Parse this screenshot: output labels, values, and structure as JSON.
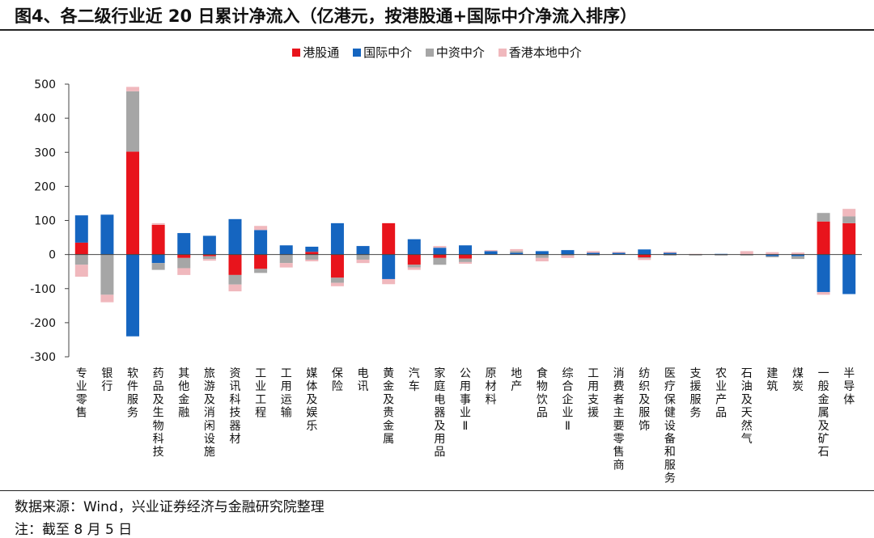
{
  "title": "图4、各二级行业近 20 日累计净流入（亿港元，按港股通+国际中介净流入排序）",
  "source": "数据来源：Wind，兴业证券经济与金融研究院整理",
  "note": "注：截至 8 月 5 日",
  "colors": {
    "港股通": "#e8141c",
    "国际中介": "#1565c0",
    "中资中介": "#a6a6a6",
    "香港本地中介": "#f0b8bd"
  },
  "chart_data": {
    "type": "bar",
    "stacked": true,
    "ylim": [
      -300,
      500
    ],
    "yticks": [
      -300,
      -200,
      -100,
      0,
      100,
      200,
      300,
      400,
      500
    ],
    "legend_position": "top-center",
    "categories": [
      "专业零售",
      "银行",
      "软件服务",
      "药品及生物科技",
      "其他金融",
      "旅游及消闲设施",
      "资讯科技器材",
      "工业工程",
      "工用运输",
      "媒体及娱乐",
      "保险",
      "电讯",
      "黄金及贵金属",
      "汽车",
      "家庭电器及用品",
      "公用事业Ⅱ",
      "原材料",
      "地产",
      "食物饮品",
      "综合企业Ⅱ",
      "工用支援",
      "消费者主要零售商",
      "纺织及服饰",
      "医疗保健设备和服务",
      "支援服务",
      "农业产品",
      "石油及天然气",
      "建筑",
      "煤炭",
      "一般金属及矿石",
      "半导体"
    ],
    "series": [
      {
        "name": "港股通",
        "values": [
          35,
          0,
          302,
          87,
          -10,
          -5,
          -60,
          -42,
          0,
          8,
          -68,
          0,
          92,
          -30,
          -10,
          -12,
          0,
          0,
          0,
          0,
          0,
          0,
          -8,
          0,
          0,
          0,
          0,
          0,
          0,
          97,
          92
        ]
      },
      {
        "name": "国际中介",
        "values": [
          80,
          117,
          -240,
          -25,
          63,
          55,
          104,
          72,
          27,
          15,
          92,
          25,
          -72,
          45,
          20,
          27,
          10,
          5,
          10,
          13,
          5,
          5,
          15,
          5,
          0,
          2,
          0,
          -5,
          -5,
          -110,
          -116
        ]
      },
      {
        "name": "中资中介",
        "values": [
          -30,
          -118,
          177,
          -20,
          -30,
          -8,
          -28,
          -12,
          -25,
          -15,
          -15,
          -15,
          0,
          -8,
          -20,
          -10,
          0,
          5,
          -10,
          -3,
          -3,
          0,
          -3,
          -3,
          -3,
          -3,
          -3,
          -3,
          -8,
          25,
          20
        ]
      },
      {
        "name": "香港本地中介",
        "values": [
          -35,
          -22,
          13,
          5,
          -20,
          -5,
          -20,
          12,
          -13,
          -5,
          -10,
          -10,
          -15,
          -7,
          5,
          -5,
          3,
          6,
          -10,
          -7,
          5,
          3,
          -5,
          3,
          2,
          0,
          10,
          7,
          6,
          -8,
          22
        ]
      }
    ]
  }
}
